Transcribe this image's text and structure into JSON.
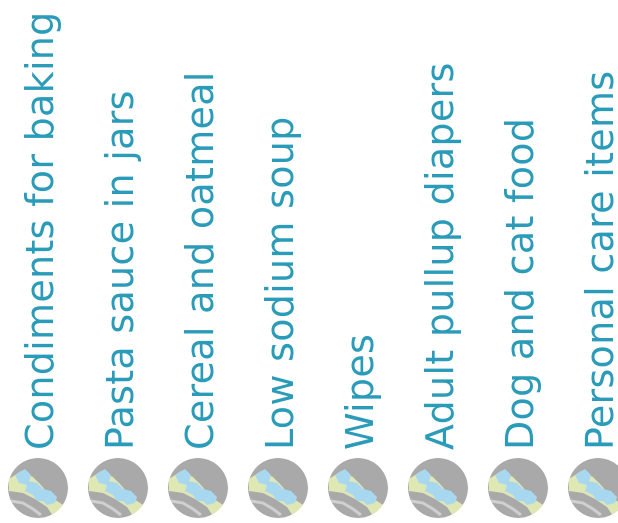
{
  "theme": {
    "label_color": "#2a9bb8",
    "icon_land_color": "#a9a9a9",
    "icon_water_color": "#a8d8f0",
    "icon_area_color": "#dfe8b2"
  },
  "items": [
    {
      "label": "Condiments for baking",
      "icon": "map-icon"
    },
    {
      "label": "Pasta sauce in jars",
      "icon": "map-icon"
    },
    {
      "label": "Cereal and oatmeal",
      "icon": "map-icon"
    },
    {
      "label": "Low sodium soup",
      "icon": "map-icon"
    },
    {
      "label": "Wipes",
      "icon": "map-icon"
    },
    {
      "label": "Adult pullup diapers",
      "icon": "map-icon"
    },
    {
      "label": "Dog and cat food",
      "icon": "map-icon"
    },
    {
      "label": "Personal care items",
      "icon": "map-icon"
    }
  ]
}
